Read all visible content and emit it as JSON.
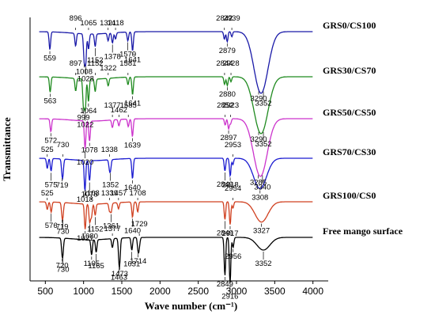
{
  "chart_data": {
    "type": "line",
    "xlabel": "Wave number (cm⁻¹)",
    "ylabel": "Transmittance",
    "xlim": [
      300,
      4200
    ],
    "xticks": [
      500,
      1000,
      1500,
      2000,
      2500,
      3000,
      3500,
      4000
    ],
    "yticks_shown": false,
    "series": [
      {
        "name": "GRS0/CS100",
        "color": "#1a1aa8",
        "peaks": [
          {
            "label": "559",
            "x": 559,
            "dip": 14,
            "label_pos": "below"
          },
          {
            "label": "896",
            "x": 896,
            "dip": 10,
            "label_pos": "above"
          },
          {
            "label": "1008",
            "x": 1008,
            "dip": 20,
            "label_pos": "below"
          },
          {
            "label": "1028",
            "x": 1028,
            "dip": 22,
            "label_pos": "below"
          },
          {
            "label": "1065",
            "x": 1065,
            "dip": 12,
            "label_pos": "above"
          },
          {
            "label": "1152",
            "x": 1152,
            "dip": 10,
            "label_pos": "below"
          },
          {
            "label": "1321",
            "x": 1321,
            "dip": 6,
            "label_pos": "above"
          },
          {
            "label": "1378",
            "x": 1378,
            "dip": 8,
            "label_pos": "below"
          },
          {
            "label": "1418",
            "x": 1418,
            "dip": 5,
            "label_pos": "above"
          },
          {
            "label": "1579",
            "x": 1579,
            "dip": 7,
            "label_pos": "below"
          },
          {
            "label": "1641",
            "x": 1641,
            "dip": 15,
            "label_pos": "below"
          },
          {
            "label": "2842",
            "x": 2842,
            "dip": 6,
            "label_pos": "above"
          },
          {
            "label": "2879",
            "x": 2879,
            "dip": 8,
            "label_pos": "below"
          },
          {
            "label": "2939",
            "x": 2939,
            "dip": 4,
            "label_pos": "above"
          },
          {
            "label": "3290",
            "x": 3290,
            "dip": 26,
            "label_pos": "below"
          },
          {
            "label": "3352",
            "x": 3352,
            "dip": 26,
            "label_pos": "below"
          }
        ]
      },
      {
        "name": "GRS30/CS70",
        "color": "#1f8a1f",
        "peaks": [
          {
            "label": "563",
            "x": 563,
            "dip": 12,
            "label_pos": "below"
          },
          {
            "label": "897",
            "x": 897,
            "dip": 10,
            "label_pos": "above"
          },
          {
            "label": "999",
            "x": 999,
            "dip": 22,
            "label_pos": "below"
          },
          {
            "label": "1022",
            "x": 1022,
            "dip": 24,
            "label_pos": "below"
          },
          {
            "label": "1064",
            "x": 1064,
            "dip": 18,
            "label_pos": "below"
          },
          {
            "label": "1152",
            "x": 1152,
            "dip": 10,
            "label_pos": "above"
          },
          {
            "label": "1322",
            "x": 1322,
            "dip": 6,
            "label_pos": "above"
          },
          {
            "label": "1581",
            "x": 1581,
            "dip": 6,
            "label_pos": "above"
          },
          {
            "label": "1641",
            "x": 1641,
            "dip": 14,
            "label_pos": "below"
          },
          {
            "label": "2844",
            "x": 2844,
            "dip": 6,
            "label_pos": "above"
          },
          {
            "label": "2880",
            "x": 2880,
            "dip": 7,
            "label_pos": "below"
          },
          {
            "label": "2928",
            "x": 2928,
            "dip": 4,
            "label_pos": "above"
          },
          {
            "label": "3290",
            "x": 3290,
            "dip": 24,
            "label_pos": "below"
          },
          {
            "label": "3352",
            "x": 3352,
            "dip": 24,
            "label_pos": "below"
          }
        ]
      },
      {
        "name": "GRS50/CS50",
        "color": "#cc33cc",
        "peaks": [
          {
            "label": "572",
            "x": 572,
            "dip": 10,
            "label_pos": "below"
          },
          {
            "label": "1020",
            "x": 1020,
            "dip": 22,
            "label_pos": "below"
          },
          {
            "label": "1078",
            "x": 1078,
            "dip": 16,
            "label_pos": "below"
          },
          {
            "label": "1377",
            "x": 1377,
            "dip": 6,
            "label_pos": "above"
          },
          {
            "label": "1462",
            "x": 1462,
            "dip": 5,
            "label_pos": "above"
          },
          {
            "label": "1585",
            "x": 1585,
            "dip": 6,
            "label_pos": "above"
          },
          {
            "label": "1639",
            "x": 1639,
            "dip": 14,
            "label_pos": "below"
          },
          {
            "label": "2852",
            "x": 2852,
            "dip": 5,
            "label_pos": "above"
          },
          {
            "label": "2897",
            "x": 2897,
            "dip": 8,
            "label_pos": "below"
          },
          {
            "label": "2923",
            "x": 2923,
            "dip": 4,
            "label_pos": "above"
          },
          {
            "label": "3285",
            "x": 3285,
            "dip": 24,
            "label_pos": "below"
          },
          {
            "label": "3340",
            "x": 3340,
            "dip": 24,
            "label_pos": "below"
          }
        ]
      },
      {
        "name": "GRS70/CS30",
        "color": "#1a1ad0",
        "peaks": [
          {
            "label": "525",
            "x": 525,
            "dip": 8,
            "label_pos": "above"
          },
          {
            "label": "575",
            "x": 575,
            "dip": 10,
            "label_pos": "below"
          },
          {
            "label": "719",
            "x": 719,
            "dip": 9,
            "label_pos": "below"
          },
          {
            "label": "730",
            "x": 730,
            "dip": 9,
            "label_pos": "above"
          },
          {
            "label": "1018",
            "x": 1018,
            "dip": 24,
            "label_pos": "below"
          },
          {
            "label": "1078",
            "x": 1078,
            "dip": 16,
            "label_pos": "below"
          },
          {
            "label": "1338",
            "x": 1338,
            "dip": 6,
            "label_pos": "above"
          },
          {
            "label": "1352",
            "x": 1352,
            "dip": 7,
            "label_pos": "below"
          },
          {
            "label": "1640",
            "x": 1640,
            "dip": 16,
            "label_pos": "below"
          },
          {
            "label": "2849",
            "x": 2849,
            "dip": 10,
            "label_pos": "below"
          },
          {
            "label": "2918",
            "x": 2918,
            "dip": 14,
            "label_pos": "below"
          },
          {
            "label": "2953",
            "x": 2953,
            "dip": 5,
            "label_pos": "above"
          },
          {
            "label": "3308",
            "x": 3308,
            "dip": 24,
            "label_pos": "below"
          }
        ]
      },
      {
        "name": "GRS100/CS0",
        "color": "#d04020",
        "peaks": [
          {
            "label": "525",
            "x": 525,
            "dip": 6,
            "label_pos": "above"
          },
          {
            "label": "576",
            "x": 576,
            "dip": 8,
            "label_pos": "below"
          },
          {
            "label": "719",
            "x": 719,
            "dip": 8,
            "label_pos": "below"
          },
          {
            "label": "730",
            "x": 730,
            "dip": 8,
            "label_pos": "below"
          },
          {
            "label": "1021",
            "x": 1021,
            "dip": 20,
            "label_pos": "below"
          },
          {
            "label": "1080",
            "x": 1080,
            "dip": 14,
            "label_pos": "below"
          },
          {
            "label": "1103",
            "x": 1103,
            "dip": 10,
            "label_pos": "above"
          },
          {
            "label": "1152",
            "x": 1152,
            "dip": 9,
            "label_pos": "below"
          },
          {
            "label": "1339",
            "x": 1339,
            "dip": 6,
            "label_pos": "above"
          },
          {
            "label": "1361",
            "x": 1361,
            "dip": 7,
            "label_pos": "below"
          },
          {
            "label": "1457",
            "x": 1457,
            "dip": 5,
            "label_pos": "above"
          },
          {
            "label": "1640",
            "x": 1640,
            "dip": 12,
            "label_pos": "below"
          },
          {
            "label": "1708",
            "x": 1708,
            "dip": 8,
            "label_pos": "above"
          },
          {
            "label": "2849",
            "x": 2849,
            "dip": 14,
            "label_pos": "below"
          },
          {
            "label": "2917",
            "x": 2917,
            "dip": 18,
            "label_pos": "below"
          },
          {
            "label": "2954",
            "x": 2954,
            "dip": 5,
            "label_pos": "above"
          },
          {
            "label": "3327",
            "x": 3327,
            "dip": 16,
            "label_pos": "below"
          }
        ]
      },
      {
        "name": "Free mango surface",
        "color": "#000000",
        "peaks": [
          {
            "label": "720",
            "x": 720,
            "dip": 10,
            "label_pos": "below"
          },
          {
            "label": "730",
            "x": 730,
            "dip": 8,
            "label_pos": "below"
          },
          {
            "label": "1105",
            "x": 1105,
            "dip": 12,
            "label_pos": "below"
          },
          {
            "label": "1165",
            "x": 1165,
            "dip": 10,
            "label_pos": "below"
          },
          {
            "label": "1377",
            "x": 1377,
            "dip": 7,
            "label_pos": "above"
          },
          {
            "label": "1463",
            "x": 1463,
            "dip": 12,
            "label_pos": "below"
          },
          {
            "label": "1473",
            "x": 1473,
            "dip": 14,
            "label_pos": "below"
          },
          {
            "label": "1631",
            "x": 1631,
            "dip": 10,
            "label_pos": "below"
          },
          {
            "label": "1714",
            "x": 1714,
            "dip": 10,
            "label_pos": "below"
          },
          {
            "label": "1729",
            "x": 1729,
            "dip": 6,
            "label_pos": "above"
          },
          {
            "label": "2849",
            "x": 2849,
            "dip": 30,
            "label_pos": "below"
          },
          {
            "label": "2916",
            "x": 2916,
            "dip": 36,
            "label_pos": "below"
          },
          {
            "label": "2956",
            "x": 2956,
            "dip": 8,
            "label_pos": "below"
          },
          {
            "label": "3352",
            "x": 3352,
            "dip": 10,
            "label_pos": "below"
          }
        ]
      }
    ]
  }
}
